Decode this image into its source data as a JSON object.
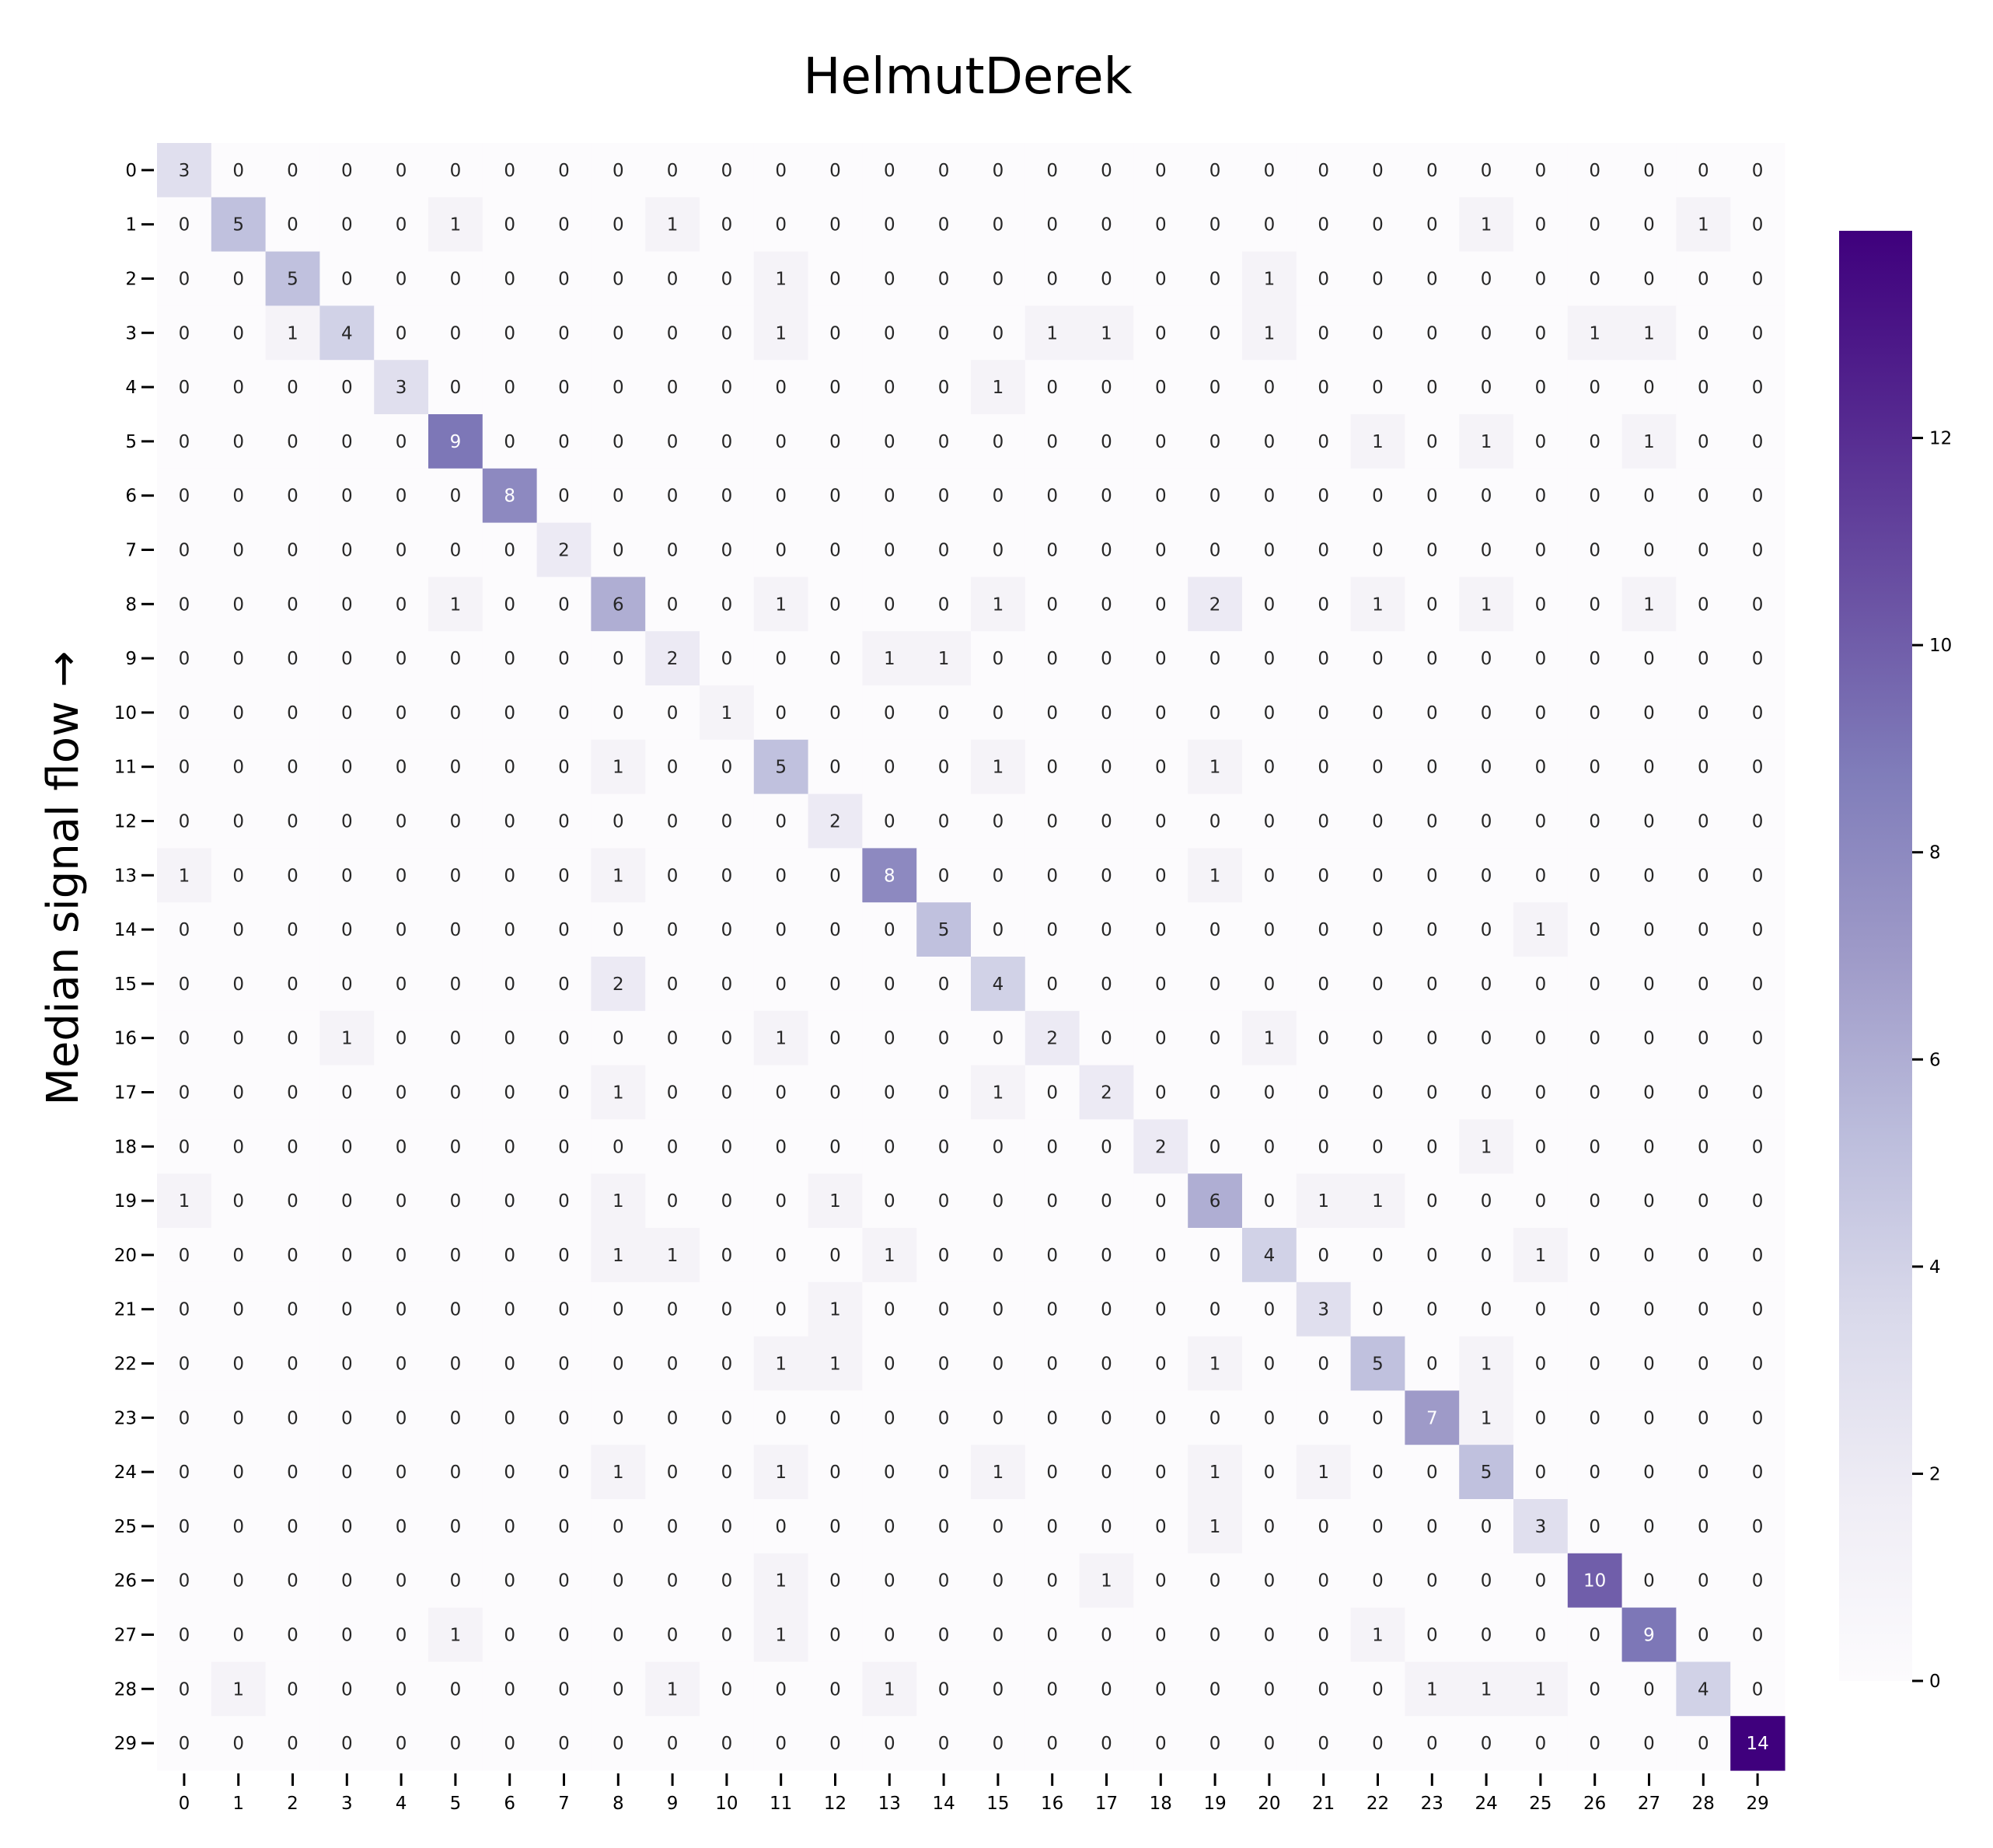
{
  "chart_data": {
    "type": "heatmap",
    "title": "HelmutDerek",
    "ylabel": "Median signal flow →",
    "xlabel": "",
    "x_categories": [
      "0",
      "1",
      "2",
      "3",
      "4",
      "5",
      "6",
      "7",
      "8",
      "9",
      "10",
      "11",
      "12",
      "13",
      "14",
      "15",
      "16",
      "17",
      "18",
      "19",
      "20",
      "21",
      "22",
      "23",
      "24",
      "25",
      "26",
      "27",
      "28",
      "29"
    ],
    "y_categories": [
      "0",
      "1",
      "2",
      "3",
      "4",
      "5",
      "6",
      "7",
      "8",
      "9",
      "10",
      "11",
      "12",
      "13",
      "14",
      "15",
      "16",
      "17",
      "18",
      "19",
      "20",
      "21",
      "22",
      "23",
      "24",
      "25",
      "26",
      "27",
      "28",
      "29"
    ],
    "colormap": "Purples",
    "colorbar": {
      "min": 0,
      "max": 14,
      "ticks": [
        0,
        2,
        4,
        6,
        8,
        10,
        12
      ]
    },
    "values": [
      [
        3,
        0,
        0,
        0,
        0,
        0,
        0,
        0,
        0,
        0,
        0,
        0,
        0,
        0,
        0,
        0,
        0,
        0,
        0,
        0,
        0,
        0,
        0,
        0,
        0,
        0,
        0,
        0,
        0,
        0
      ],
      [
        0,
        5,
        0,
        0,
        0,
        1,
        0,
        0,
        0,
        1,
        0,
        0,
        0,
        0,
        0,
        0,
        0,
        0,
        0,
        0,
        0,
        0,
        0,
        0,
        1,
        0,
        0,
        0,
        1,
        0
      ],
      [
        0,
        0,
        5,
        0,
        0,
        0,
        0,
        0,
        0,
        0,
        0,
        1,
        0,
        0,
        0,
        0,
        0,
        0,
        0,
        0,
        1,
        0,
        0,
        0,
        0,
        0,
        0,
        0,
        0,
        0
      ],
      [
        0,
        0,
        1,
        4,
        0,
        0,
        0,
        0,
        0,
        0,
        0,
        1,
        0,
        0,
        0,
        0,
        1,
        1,
        0,
        0,
        1,
        0,
        0,
        0,
        0,
        0,
        1,
        1,
        0,
        0
      ],
      [
        0,
        0,
        0,
        0,
        3,
        0,
        0,
        0,
        0,
        0,
        0,
        0,
        0,
        0,
        0,
        1,
        0,
        0,
        0,
        0,
        0,
        0,
        0,
        0,
        0,
        0,
        0,
        0,
        0,
        0
      ],
      [
        0,
        0,
        0,
        0,
        0,
        9,
        0,
        0,
        0,
        0,
        0,
        0,
        0,
        0,
        0,
        0,
        0,
        0,
        0,
        0,
        0,
        0,
        1,
        0,
        1,
        0,
        0,
        1,
        0,
        0
      ],
      [
        0,
        0,
        0,
        0,
        0,
        0,
        8,
        0,
        0,
        0,
        0,
        0,
        0,
        0,
        0,
        0,
        0,
        0,
        0,
        0,
        0,
        0,
        0,
        0,
        0,
        0,
        0,
        0,
        0,
        0
      ],
      [
        0,
        0,
        0,
        0,
        0,
        0,
        0,
        2,
        0,
        0,
        0,
        0,
        0,
        0,
        0,
        0,
        0,
        0,
        0,
        0,
        0,
        0,
        0,
        0,
        0,
        0,
        0,
        0,
        0,
        0
      ],
      [
        0,
        0,
        0,
        0,
        0,
        1,
        0,
        0,
        6,
        0,
        0,
        1,
        0,
        0,
        0,
        1,
        0,
        0,
        0,
        2,
        0,
        0,
        1,
        0,
        1,
        0,
        0,
        1,
        0,
        0
      ],
      [
        0,
        0,
        0,
        0,
        0,
        0,
        0,
        0,
        0,
        2,
        0,
        0,
        0,
        1,
        1,
        0,
        0,
        0,
        0,
        0,
        0,
        0,
        0,
        0,
        0,
        0,
        0,
        0,
        0,
        0
      ],
      [
        0,
        0,
        0,
        0,
        0,
        0,
        0,
        0,
        0,
        0,
        1,
        0,
        0,
        0,
        0,
        0,
        0,
        0,
        0,
        0,
        0,
        0,
        0,
        0,
        0,
        0,
        0,
        0,
        0,
        0
      ],
      [
        0,
        0,
        0,
        0,
        0,
        0,
        0,
        0,
        1,
        0,
        0,
        5,
        0,
        0,
        0,
        1,
        0,
        0,
        0,
        1,
        0,
        0,
        0,
        0,
        0,
        0,
        0,
        0,
        0,
        0
      ],
      [
        0,
        0,
        0,
        0,
        0,
        0,
        0,
        0,
        0,
        0,
        0,
        0,
        2,
        0,
        0,
        0,
        0,
        0,
        0,
        0,
        0,
        0,
        0,
        0,
        0,
        0,
        0,
        0,
        0,
        0
      ],
      [
        1,
        0,
        0,
        0,
        0,
        0,
        0,
        0,
        1,
        0,
        0,
        0,
        0,
        8,
        0,
        0,
        0,
        0,
        0,
        1,
        0,
        0,
        0,
        0,
        0,
        0,
        0,
        0,
        0,
        0
      ],
      [
        0,
        0,
        0,
        0,
        0,
        0,
        0,
        0,
        0,
        0,
        0,
        0,
        0,
        0,
        5,
        0,
        0,
        0,
        0,
        0,
        0,
        0,
        0,
        0,
        0,
        1,
        0,
        0,
        0,
        0
      ],
      [
        0,
        0,
        0,
        0,
        0,
        0,
        0,
        0,
        2,
        0,
        0,
        0,
        0,
        0,
        0,
        4,
        0,
        0,
        0,
        0,
        0,
        0,
        0,
        0,
        0,
        0,
        0,
        0,
        0,
        0
      ],
      [
        0,
        0,
        0,
        1,
        0,
        0,
        0,
        0,
        0,
        0,
        0,
        1,
        0,
        0,
        0,
        0,
        2,
        0,
        0,
        0,
        1,
        0,
        0,
        0,
        0,
        0,
        0,
        0,
        0,
        0
      ],
      [
        0,
        0,
        0,
        0,
        0,
        0,
        0,
        0,
        1,
        0,
        0,
        0,
        0,
        0,
        0,
        1,
        0,
        2,
        0,
        0,
        0,
        0,
        0,
        0,
        0,
        0,
        0,
        0,
        0,
        0
      ],
      [
        0,
        0,
        0,
        0,
        0,
        0,
        0,
        0,
        0,
        0,
        0,
        0,
        0,
        0,
        0,
        0,
        0,
        0,
        2,
        0,
        0,
        0,
        0,
        0,
        1,
        0,
        0,
        0,
        0,
        0
      ],
      [
        1,
        0,
        0,
        0,
        0,
        0,
        0,
        0,
        1,
        0,
        0,
        0,
        1,
        0,
        0,
        0,
        0,
        0,
        0,
        6,
        0,
        1,
        1,
        0,
        0,
        0,
        0,
        0,
        0,
        0
      ],
      [
        0,
        0,
        0,
        0,
        0,
        0,
        0,
        0,
        1,
        1,
        0,
        0,
        0,
        1,
        0,
        0,
        0,
        0,
        0,
        0,
        4,
        0,
        0,
        0,
        0,
        1,
        0,
        0,
        0,
        0
      ],
      [
        0,
        0,
        0,
        0,
        0,
        0,
        0,
        0,
        0,
        0,
        0,
        0,
        1,
        0,
        0,
        0,
        0,
        0,
        0,
        0,
        0,
        3,
        0,
        0,
        0,
        0,
        0,
        0,
        0,
        0
      ],
      [
        0,
        0,
        0,
        0,
        0,
        0,
        0,
        0,
        0,
        0,
        0,
        1,
        1,
        0,
        0,
        0,
        0,
        0,
        0,
        1,
        0,
        0,
        5,
        0,
        1,
        0,
        0,
        0,
        0,
        0
      ],
      [
        0,
        0,
        0,
        0,
        0,
        0,
        0,
        0,
        0,
        0,
        0,
        0,
        0,
        0,
        0,
        0,
        0,
        0,
        0,
        0,
        0,
        0,
        0,
        7,
        1,
        0,
        0,
        0,
        0,
        0
      ],
      [
        0,
        0,
        0,
        0,
        0,
        0,
        0,
        0,
        1,
        0,
        0,
        1,
        0,
        0,
        0,
        1,
        0,
        0,
        0,
        1,
        0,
        1,
        0,
        0,
        5,
        0,
        0,
        0,
        0,
        0
      ],
      [
        0,
        0,
        0,
        0,
        0,
        0,
        0,
        0,
        0,
        0,
        0,
        0,
        0,
        0,
        0,
        0,
        0,
        0,
        0,
        1,
        0,
        0,
        0,
        0,
        0,
        3,
        0,
        0,
        0,
        0
      ],
      [
        0,
        0,
        0,
        0,
        0,
        0,
        0,
        0,
        0,
        0,
        0,
        1,
        0,
        0,
        0,
        0,
        0,
        1,
        0,
        0,
        0,
        0,
        0,
        0,
        0,
        0,
        10,
        0,
        0,
        0
      ],
      [
        0,
        0,
        0,
        0,
        0,
        1,
        0,
        0,
        0,
        0,
        0,
        1,
        0,
        0,
        0,
        0,
        0,
        0,
        0,
        0,
        0,
        0,
        1,
        0,
        0,
        0,
        0,
        9,
        0,
        0
      ],
      [
        0,
        1,
        0,
        0,
        0,
        0,
        0,
        0,
        0,
        1,
        0,
        0,
        0,
        1,
        0,
        0,
        0,
        0,
        0,
        0,
        0,
        0,
        0,
        1,
        1,
        1,
        0,
        0,
        4,
        0
      ],
      [
        0,
        0,
        0,
        0,
        0,
        0,
        0,
        0,
        0,
        0,
        0,
        0,
        0,
        0,
        0,
        0,
        0,
        0,
        0,
        0,
        0,
        0,
        0,
        0,
        0,
        0,
        0,
        0,
        0,
        14
      ]
    ]
  }
}
